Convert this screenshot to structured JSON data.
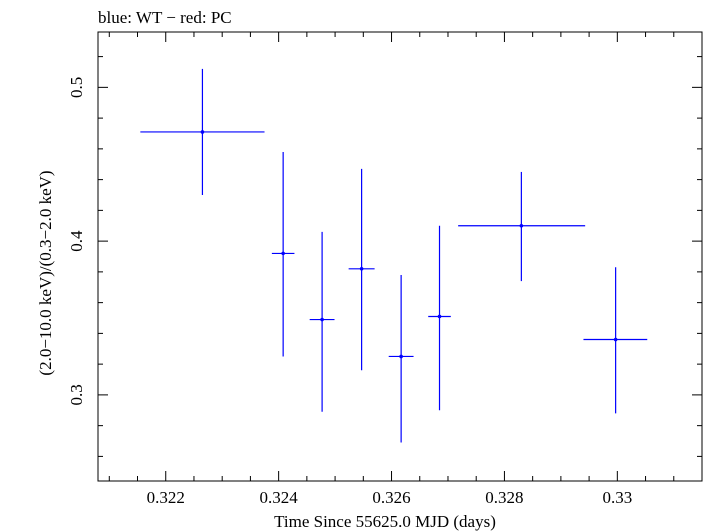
{
  "chart_data": {
    "type": "scatter",
    "subtitle": "blue: WT − red: PC",
    "xlabel": "Time Since 55625.0 MJD (days)",
    "ylabel": "(2.0−10.0 keV)/(0.3−2.0 keV)",
    "xlim": [
      0.3208,
      0.3315
    ],
    "ylim": [
      0.244,
      0.536
    ],
    "x_ticks": [
      {
        "value": 0.322,
        "label": "0.322"
      },
      {
        "value": 0.324,
        "label": "0.324"
      },
      {
        "value": 0.326,
        "label": "0.326"
      },
      {
        "value": 0.328,
        "label": "0.328"
      },
      {
        "value": 0.33,
        "label": "0.33"
      }
    ],
    "y_ticks": [
      {
        "value": 0.3,
        "label": "0.3"
      },
      {
        "value": 0.4,
        "label": "0.4"
      },
      {
        "value": 0.5,
        "label": "0.5"
      }
    ],
    "grid": false,
    "series": [
      {
        "color": "#0000ff",
        "points": [
          {
            "x": 0.32265,
            "xlo": 0.32155,
            "xhi": 0.32375,
            "y": 0.471,
            "ylo": 0.43,
            "yhi": 0.512
          },
          {
            "x": 0.32408,
            "xlo": 0.32388,
            "xhi": 0.32428,
            "y": 0.392,
            "ylo": 0.325,
            "yhi": 0.458
          },
          {
            "x": 0.32477,
            "xlo": 0.32455,
            "xhi": 0.32499,
            "y": 0.349,
            "ylo": 0.289,
            "yhi": 0.406
          },
          {
            "x": 0.32547,
            "xlo": 0.32524,
            "xhi": 0.3257,
            "y": 0.382,
            "ylo": 0.316,
            "yhi": 0.447
          },
          {
            "x": 0.32617,
            "xlo": 0.32595,
            "xhi": 0.32639,
            "y": 0.325,
            "ylo": 0.269,
            "yhi": 0.378
          },
          {
            "x": 0.32685,
            "xlo": 0.32665,
            "xhi": 0.32705,
            "y": 0.351,
            "ylo": 0.29,
            "yhi": 0.41
          },
          {
            "x": 0.3283,
            "xlo": 0.32718,
            "xhi": 0.32943,
            "y": 0.41,
            "ylo": 0.374,
            "yhi": 0.445
          },
          {
            "x": 0.32997,
            "xlo": 0.3294,
            "xhi": 0.33053,
            "y": 0.336,
            "ylo": 0.288,
            "yhi": 0.383
          }
        ]
      }
    ]
  }
}
